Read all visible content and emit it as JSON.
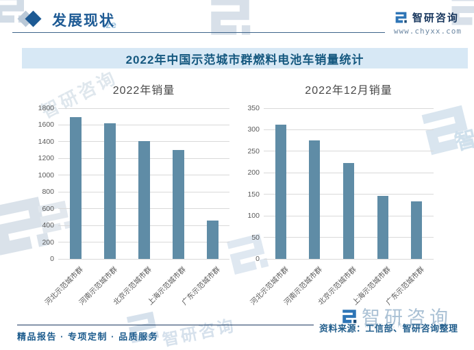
{
  "header": {
    "section_title": "发展现状",
    "brand_name": "智研咨询",
    "brand_url": "www.chyxx.com"
  },
  "banner": {
    "title": "2022年中国示范城市群燃料电池车销量统计"
  },
  "chart_data": [
    {
      "type": "bar",
      "title": "2022年销量",
      "categories": [
        "河北示范城市群",
        "河南示范城市群",
        "北京示范城市群",
        "上海示范城市群",
        "广东示范城市群"
      ],
      "values": [
        1690,
        1620,
        1410,
        1300,
        460
      ],
      "ylim": [
        0,
        1800
      ],
      "ystep": 200,
      "grid": true,
      "legend": "none",
      "bar_color": "#5f8ca6"
    },
    {
      "type": "bar",
      "title": "2022年12月销量",
      "categories": [
        "河北示范城市群",
        "河南示范城市群",
        "北京示范城市群",
        "上海示范城市群",
        "广东示范城市群"
      ],
      "values": [
        312,
        276,
        223,
        146,
        134
      ],
      "ylim": [
        0,
        350
      ],
      "ystep": 50,
      "grid": true,
      "legend": "none",
      "bar_color": "#5f8ca6"
    }
  ],
  "footer": {
    "tagline": "精品报告 · 专项定制 · 品质服务",
    "source": "资料来源：工信部、智研咨询整理",
    "brand_name": "智研咨询"
  },
  "watermark": {
    "brand_text": "智研咨询",
    "suffix_text": "ize",
    "url_text": "www.chyxx.com"
  },
  "colors": {
    "accent": "#1d5a94",
    "banner_bg": "#d7e8f5",
    "banner_text": "#15587f",
    "bar": "#5f8ca6",
    "grid": "#d9d9d9",
    "axis_text": "#595959"
  }
}
